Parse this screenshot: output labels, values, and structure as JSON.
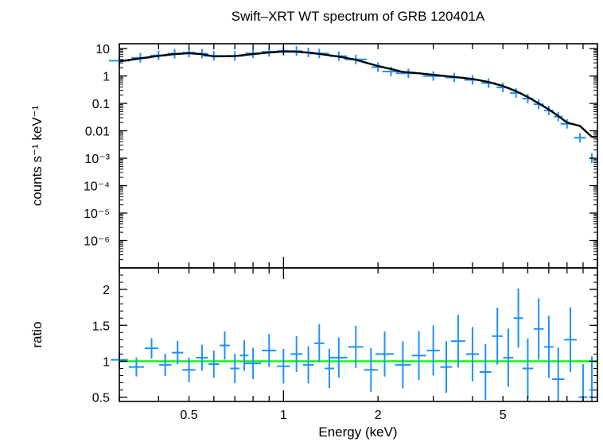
{
  "chart_data": [
    {
      "type": "scatter",
      "panel": "spectrum",
      "title": "Swift–XRT WT spectrum of GRB 120401A",
      "xlabel": "",
      "ylabel": "counts s⁻¹ keV⁻¹",
      "xscale": "log",
      "yscale": "log",
      "xlim": [
        0.3,
        10
      ],
      "ylim": [
        1e-07,
        15
      ],
      "grid": false,
      "x_tick_labels": [
        {
          "value": 0.5,
          "label": "0.5"
        },
        {
          "value": 1,
          "label": "1"
        },
        {
          "value": 2,
          "label": "2"
        },
        {
          "value": 5,
          "label": "5"
        }
      ],
      "y_tick_labels": [
        {
          "value": 10,
          "label": "10"
        },
        {
          "value": 1,
          "label": "1"
        },
        {
          "value": 0.1,
          "label": "0.1"
        },
        {
          "value": 0.01,
          "label": "0.01"
        },
        {
          "value": 0.001,
          "label": "10⁻³"
        },
        {
          "value": 0.0001,
          "label": "10⁻⁴"
        },
        {
          "value": 1e-05,
          "label": "10⁻⁵"
        },
        {
          "value": 1e-06,
          "label": "10⁻⁶"
        }
      ],
      "series": [
        {
          "kind": "data_points",
          "color": "#1e90ff",
          "x": [
            0.3,
            0.35,
            0.4,
            0.45,
            0.5,
            0.55,
            0.6,
            0.7,
            0.8,
            0.9,
            1.0,
            1.1,
            1.2,
            1.3,
            1.5,
            1.7,
            2.0,
            2.2,
            2.5,
            3.0,
            3.5,
            4.0,
            4.5,
            5.0,
            5.5,
            6.0,
            6.5,
            7.0,
            7.5,
            8.0,
            8.8,
            9.6
          ],
          "y": [
            3.6,
            4.6,
            5.6,
            6.5,
            7.1,
            6.5,
            5.4,
            5.4,
            6.6,
            7.6,
            8.3,
            8.1,
            7.2,
            6.6,
            5.3,
            4.0,
            2.1,
            1.45,
            1.25,
            1.0,
            0.88,
            0.72,
            0.55,
            0.38,
            0.24,
            0.15,
            0.093,
            0.055,
            0.033,
            0.018,
            0.0056,
            0.001
          ]
        },
        {
          "kind": "model",
          "color": "#000000",
          "x": [
            0.3,
            0.35,
            0.4,
            0.45,
            0.5,
            0.55,
            0.6,
            0.7,
            0.8,
            0.9,
            1.0,
            1.1,
            1.2,
            1.3,
            1.5,
            1.7,
            2.0,
            2.2,
            2.4,
            2.6,
            3.0,
            3.5,
            4.0,
            4.5,
            5.0,
            5.5,
            6.0,
            6.5,
            7.0,
            7.5,
            8.0,
            8.8,
            9.6,
            10.0
          ],
          "y": [
            3.4,
            4.4,
            5.4,
            6.3,
            6.8,
            6.2,
            5.2,
            5.3,
            6.3,
            7.2,
            7.8,
            7.7,
            7.1,
            6.4,
            5.1,
            3.9,
            2.3,
            1.8,
            1.4,
            1.3,
            1.1,
            0.92,
            0.78,
            0.6,
            0.43,
            0.28,
            0.17,
            0.1,
            0.06,
            0.035,
            0.02,
            0.015,
            0.006,
            0.006
          ]
        }
      ]
    },
    {
      "type": "scatter",
      "panel": "ratio",
      "xlabel": "Energy (keV)",
      "ylabel": "ratio",
      "xscale": "log",
      "yscale": "linear",
      "xlim": [
        0.3,
        10
      ],
      "ylim": [
        0.44,
        2.3
      ],
      "grid": false,
      "x_tick_labels": [
        {
          "value": 0.5,
          "label": "0.5"
        },
        {
          "value": 1,
          "label": "1"
        },
        {
          "value": 2,
          "label": "2"
        },
        {
          "value": 5,
          "label": "5"
        }
      ],
      "y_tick_labels": [
        {
          "value": 2,
          "label": "2"
        },
        {
          "value": 1.5,
          "label": "1.5"
        },
        {
          "value": 1,
          "label": "1"
        },
        {
          "value": 0.5,
          "label": "0.5"
        }
      ],
      "reference_line": {
        "y": 1,
        "color": "#00ff00"
      },
      "series": [
        {
          "kind": "data_points",
          "color": "#1e90ff",
          "x": [
            0.3,
            0.34,
            0.38,
            0.42,
            0.46,
            0.5,
            0.55,
            0.6,
            0.65,
            0.7,
            0.75,
            0.8,
            0.9,
            1.0,
            1.1,
            1.2,
            1.3,
            1.4,
            1.5,
            1.7,
            1.9,
            2.1,
            2.4,
            2.7,
            3.0,
            3.3,
            3.6,
            4.0,
            4.4,
            4.8,
            5.2,
            5.6,
            6.0,
            6.5,
            7.0,
            7.5,
            8.2,
            9.0,
            9.6
          ],
          "y": [
            1.02,
            0.92,
            1.18,
            0.95,
            1.12,
            0.88,
            1.05,
            0.96,
            1.22,
            0.9,
            1.08,
            0.97,
            1.15,
            0.93,
            1.1,
            0.95,
            1.25,
            0.9,
            1.05,
            1.2,
            0.88,
            1.1,
            0.95,
            1.08,
            1.15,
            0.92,
            1.28,
            1.1,
            0.85,
            1.35,
            1.05,
            1.6,
            0.9,
            1.45,
            1.2,
            0.75,
            1.3,
            0.5,
            0.6
          ]
        }
      ]
    }
  ]
}
